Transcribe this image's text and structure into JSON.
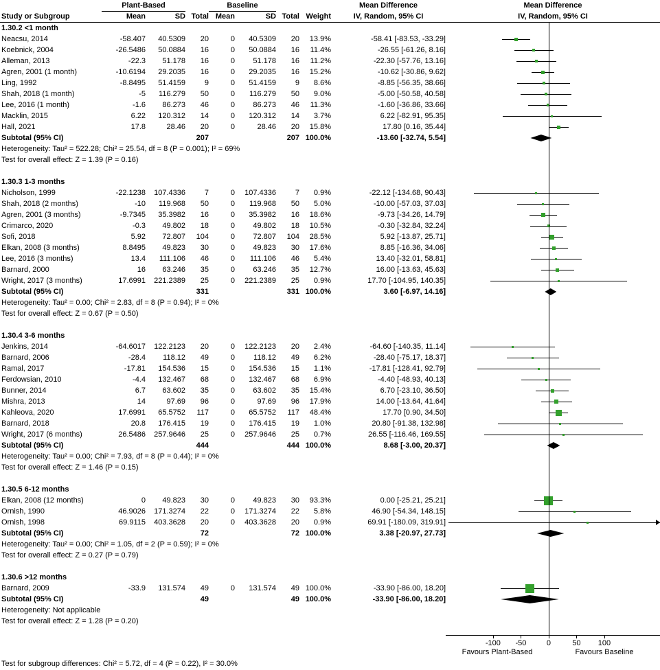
{
  "header": {
    "group_plant": "Plant-Based",
    "group_baseline": "Baseline",
    "md_title": "Mean Difference",
    "md_sub": "IV, Random, 95% CI",
    "cols": {
      "study": "Study or Subgroup",
      "mean": "Mean",
      "sd": "SD",
      "total": "Total",
      "weight": "Weight"
    }
  },
  "chart_data": {
    "type": "forest",
    "effect_measure": "Mean Difference",
    "method": "IV, Random, 95% CI",
    "axis": {
      "min": -185,
      "max": 200,
      "ticks": [
        -100,
        -50,
        0,
        50,
        100
      ]
    },
    "favours_left": "Favours Plant-Based",
    "favours_right": "Favours Baseline",
    "marker_color": "#33a02c",
    "footer": "Test for subgroup differences: Chi² = 5.72, df = 4 (P = 0.22), I² = 30.0%",
    "subgroups": [
      {
        "label": "1.30.2 <1 month",
        "studies": [
          {
            "study": "Neacsu, 2014",
            "mean1": "-58.407",
            "sd1": "40.5309",
            "total1": "20",
            "mean2": "0",
            "sd2": "40.5309",
            "total2": "20",
            "weight": "13.9%",
            "md": -58.41,
            "lo": -83.53,
            "hi": -33.29,
            "md_text": "-58.41 [-83.53, -33.29]"
          },
          {
            "study": "Koebnick, 2004",
            "mean1": "-26.5486",
            "sd1": "50.0884",
            "total1": "16",
            "mean2": "0",
            "sd2": "50.0884",
            "total2": "16",
            "weight": "11.4%",
            "md": -26.55,
            "lo": -61.26,
            "hi": 8.16,
            "md_text": "-26.55 [-61.26, 8.16]"
          },
          {
            "study": "Alleman, 2013",
            "mean1": "-22.3",
            "sd1": "51.178",
            "total1": "16",
            "mean2": "0",
            "sd2": "51.178",
            "total2": "16",
            "weight": "11.2%",
            "md": -22.3,
            "lo": -57.76,
            "hi": 13.16,
            "md_text": "-22.30 [-57.76, 13.16]"
          },
          {
            "study": "Agren, 2001 (1 month)",
            "mean1": "-10.6194",
            "sd1": "29.2035",
            "total1": "16",
            "mean2": "0",
            "sd2": "29.2035",
            "total2": "16",
            "weight": "15.2%",
            "md": -10.62,
            "lo": -30.86,
            "hi": 9.62,
            "md_text": "-10.62 [-30.86, 9.62]"
          },
          {
            "study": "Ling, 1992",
            "mean1": "-8.8495",
            "sd1": "51.4159",
            "total1": "9",
            "mean2": "0",
            "sd2": "51.4159",
            "total2": "9",
            "weight": "8.6%",
            "md": -8.85,
            "lo": -56.35,
            "hi": 38.66,
            "md_text": "-8.85 [-56.35, 38.66]"
          },
          {
            "study": "Shah, 2018 (1 month)",
            "mean1": "-5",
            "sd1": "116.279",
            "total1": "50",
            "mean2": "0",
            "sd2": "116.279",
            "total2": "50",
            "weight": "9.0%",
            "md": -5.0,
            "lo": -50.58,
            "hi": 40.58,
            "md_text": "-5.00 [-50.58, 40.58]"
          },
          {
            "study": "Lee, 2016 (1 month)",
            "mean1": "-1.6",
            "sd1": "86.273",
            "total1": "46",
            "mean2": "0",
            "sd2": "86.273",
            "total2": "46",
            "weight": "11.3%",
            "md": -1.6,
            "lo": -36.86,
            "hi": 33.66,
            "md_text": "-1.60 [-36.86, 33.66]"
          },
          {
            "study": "Macklin, 2015",
            "mean1": "6.22",
            "sd1": "120.312",
            "total1": "14",
            "mean2": "0",
            "sd2": "120.312",
            "total2": "14",
            "weight": "3.7%",
            "md": 6.22,
            "lo": -82.91,
            "hi": 95.35,
            "md_text": "6.22 [-82.91, 95.35]"
          },
          {
            "study": "Hall, 2021",
            "mean1": "17.8",
            "sd1": "28.46",
            "total1": "20",
            "mean2": "0",
            "sd2": "28.46",
            "total2": "20",
            "weight": "15.8%",
            "md": 17.8,
            "lo": 0.16,
            "hi": 35.44,
            "md_text": "17.80 [0.16, 35.44]"
          }
        ],
        "subtotal": {
          "label": "Subtotal (95% CI)",
          "total1": "207",
          "total2": "207",
          "weight": "100.0%",
          "md": -13.6,
          "lo": -32.74,
          "hi": 5.54,
          "md_text": "-13.60 [-32.74, 5.54]"
        },
        "heterogeneity": "Heterogeneity: Tau² = 522.28; Chi² = 25.54, df = 8 (P = 0.001); I² = 69%",
        "overall_effect": "Test for overall effect: Z = 1.39 (P = 0.16)"
      },
      {
        "label": "1.30.3 1-3 months",
        "studies": [
          {
            "study": "Nicholson, 1999",
            "mean1": "-22.1238",
            "sd1": "107.4336",
            "total1": "7",
            "mean2": "0",
            "sd2": "107.4336",
            "total2": "7",
            "weight": "0.9%",
            "md": -22.12,
            "lo": -134.68,
            "hi": 90.43,
            "md_text": "-22.12 [-134.68, 90.43]"
          },
          {
            "study": "Shah, 2018 (2 months)",
            "mean1": "-10",
            "sd1": "119.968",
            "total1": "50",
            "mean2": "0",
            "sd2": "119.968",
            "total2": "50",
            "weight": "5.0%",
            "md": -10.0,
            "lo": -57.03,
            "hi": 37.03,
            "md_text": "-10.00 [-57.03, 37.03]"
          },
          {
            "study": "Agren, 2001 (3 months)",
            "mean1": "-9.7345",
            "sd1": "35.3982",
            "total1": "16",
            "mean2": "0",
            "sd2": "35.3982",
            "total2": "16",
            "weight": "18.6%",
            "md": -9.73,
            "lo": -34.26,
            "hi": 14.79,
            "md_text": "-9.73 [-34.26, 14.79]"
          },
          {
            "study": "Crimarco, 2020",
            "mean1": "-0.3",
            "sd1": "49.802",
            "total1": "18",
            "mean2": "0",
            "sd2": "49.802",
            "total2": "18",
            "weight": "10.5%",
            "md": -0.3,
            "lo": -32.84,
            "hi": 32.24,
            "md_text": "-0.30 [-32.84, 32.24]"
          },
          {
            "study": "Sofi, 2018",
            "mean1": "5.92",
            "sd1": "72.807",
            "total1": "104",
            "mean2": "0",
            "sd2": "72.807",
            "total2": "104",
            "weight": "28.5%",
            "md": 5.92,
            "lo": -13.87,
            "hi": 25.71,
            "md_text": "5.92 [-13.87, 25.71]"
          },
          {
            "study": "Elkan, 2008 (3 months)",
            "mean1": "8.8495",
            "sd1": "49.823",
            "total1": "30",
            "mean2": "0",
            "sd2": "49.823",
            "total2": "30",
            "weight": "17.6%",
            "md": 8.85,
            "lo": -16.36,
            "hi": 34.06,
            "md_text": "8.85 [-16.36, 34.06]"
          },
          {
            "study": "Lee, 2016 (3 months)",
            "mean1": "13.4",
            "sd1": "111.106",
            "total1": "46",
            "mean2": "0",
            "sd2": "111.106",
            "total2": "46",
            "weight": "5.4%",
            "md": 13.4,
            "lo": -32.01,
            "hi": 58.81,
            "md_text": "13.40 [-32.01, 58.81]"
          },
          {
            "study": "Barnard, 2000",
            "mean1": "16",
            "sd1": "63.246",
            "total1": "35",
            "mean2": "0",
            "sd2": "63.246",
            "total2": "35",
            "weight": "12.7%",
            "md": 16.0,
            "lo": -13.63,
            "hi": 45.63,
            "md_text": "16.00 [-13.63, 45.63]"
          },
          {
            "study": "Wright, 2017 (3 months)",
            "mean1": "17.6991",
            "sd1": "221.2389",
            "total1": "25",
            "mean2": "0",
            "sd2": "221.2389",
            "total2": "25",
            "weight": "0.9%",
            "md": 17.7,
            "lo": -104.95,
            "hi": 140.35,
            "md_text": "17.70 [-104.95, 140.35]"
          }
        ],
        "subtotal": {
          "label": "Subtotal (95% CI)",
          "total1": "331",
          "total2": "331",
          "weight": "100.0%",
          "md": 3.6,
          "lo": -6.97,
          "hi": 14.16,
          "md_text": "3.60 [-6.97, 14.16]"
        },
        "heterogeneity": "Heterogeneity: Tau² = 0.00; Chi² = 2.83, df = 8 (P = 0.94); I² = 0%",
        "overall_effect": "Test for overall effect: Z = 0.67 (P = 0.50)"
      },
      {
        "label": "1.30.4 3-6 months",
        "studies": [
          {
            "study": "Jenkins, 2014",
            "mean1": "-64.6017",
            "sd1": "122.2123",
            "total1": "20",
            "mean2": "0",
            "sd2": "122.2123",
            "total2": "20",
            "weight": "2.4%",
            "md": -64.6,
            "lo": -140.35,
            "hi": 11.14,
            "md_text": "-64.60 [-140.35, 11.14]"
          },
          {
            "study": "Barnard, 2006",
            "mean1": "-28.4",
            "sd1": "118.12",
            "total1": "49",
            "mean2": "0",
            "sd2": "118.12",
            "total2": "49",
            "weight": "6.2%",
            "md": -28.4,
            "lo": -75.17,
            "hi": 18.37,
            "md_text": "-28.40 [-75.17, 18.37]"
          },
          {
            "study": "Ramal, 2017",
            "mean1": "-17.81",
            "sd1": "154.536",
            "total1": "15",
            "mean2": "0",
            "sd2": "154.536",
            "total2": "15",
            "weight": "1.1%",
            "md": -17.81,
            "lo": -128.41,
            "hi": 92.79,
            "md_text": "-17.81 [-128.41, 92.79]"
          },
          {
            "study": "Ferdowsian, 2010",
            "mean1": "-4.4",
            "sd1": "132.467",
            "total1": "68",
            "mean2": "0",
            "sd2": "132.467",
            "total2": "68",
            "weight": "6.9%",
            "md": -4.4,
            "lo": -48.93,
            "hi": 40.13,
            "md_text": "-4.40 [-48.93, 40.13]"
          },
          {
            "study": "Bunner, 2014",
            "mean1": "6.7",
            "sd1": "63.602",
            "total1": "35",
            "mean2": "0",
            "sd2": "63.602",
            "total2": "35",
            "weight": "15.4%",
            "md": 6.7,
            "lo": -23.1,
            "hi": 36.5,
            "md_text": "6.70 [-23.10, 36.50]"
          },
          {
            "study": "Mishra, 2013",
            "mean1": "14",
            "sd1": "97.69",
            "total1": "96",
            "mean2": "0",
            "sd2": "97.69",
            "total2": "96",
            "weight": "17.9%",
            "md": 14.0,
            "lo": -13.64,
            "hi": 41.64,
            "md_text": "14.00 [-13.64, 41.64]"
          },
          {
            "study": "Kahleova, 2020",
            "mean1": "17.6991",
            "sd1": "65.5752",
            "total1": "117",
            "mean2": "0",
            "sd2": "65.5752",
            "total2": "117",
            "weight": "48.4%",
            "md": 17.7,
            "lo": 0.9,
            "hi": 34.5,
            "md_text": "17.70 [0.90, 34.50]"
          },
          {
            "study": "Barnard, 2018",
            "mean1": "20.8",
            "sd1": "176.415",
            "total1": "19",
            "mean2": "0",
            "sd2": "176.415",
            "total2": "19",
            "weight": "1.0%",
            "md": 20.8,
            "lo": -91.38,
            "hi": 132.98,
            "md_text": "20.80 [-91.38, 132.98]"
          },
          {
            "study": "Wright, 2017 (6 months)",
            "mean1": "26.5486",
            "sd1": "257.9646",
            "total1": "25",
            "mean2": "0",
            "sd2": "257.9646",
            "total2": "25",
            "weight": "0.7%",
            "md": 26.55,
            "lo": -116.46,
            "hi": 169.55,
            "md_text": "26.55 [-116.46, 169.55]"
          }
        ],
        "subtotal": {
          "label": "Subtotal (95% CI)",
          "total1": "444",
          "total2": "444",
          "weight": "100.0%",
          "md": 8.68,
          "lo": -3.0,
          "hi": 20.37,
          "md_text": "8.68 [-3.00, 20.37]"
        },
        "heterogeneity": "Heterogeneity: Tau² = 0.00; Chi² = 7.93, df = 8 (P = 0.44); I² = 0%",
        "overall_effect": "Test for overall effect: Z = 1.46 (P = 0.15)"
      },
      {
        "label": "1.30.5 6-12 months",
        "studies": [
          {
            "study": "Elkan, 2008 (12 months)",
            "mean1": "0",
            "sd1": "49.823",
            "total1": "30",
            "mean2": "0",
            "sd2": "49.823",
            "total2": "30",
            "weight": "93.3%",
            "md": 0.0,
            "lo": -25.21,
            "hi": 25.21,
            "md_text": "0.00 [-25.21, 25.21]"
          },
          {
            "study": "Ornish, 1990",
            "mean1": "46.9026",
            "sd1": "171.3274",
            "total1": "22",
            "mean2": "0",
            "sd2": "171.3274",
            "total2": "22",
            "weight": "5.8%",
            "md": 46.9,
            "lo": -54.34,
            "hi": 148.15,
            "md_text": "46.90 [-54.34, 148.15]"
          },
          {
            "study": "Ornish, 1998",
            "mean1": "69.9115",
            "sd1": "403.3628",
            "total1": "20",
            "mean2": "0",
            "sd2": "403.3628",
            "total2": "20",
            "weight": "0.9%",
            "md": 69.91,
            "lo": -180.09,
            "hi": 319.91,
            "md_text": "69.91 [-180.09, 319.91]"
          }
        ],
        "subtotal": {
          "label": "Subtotal (95% CI)",
          "total1": "72",
          "total2": "72",
          "weight": "100.0%",
          "md": 3.38,
          "lo": -20.97,
          "hi": 27.73,
          "md_text": "3.38 [-20.97, 27.73]"
        },
        "heterogeneity": "Heterogeneity: Tau² = 0.00; Chi² = 1.05, df = 2 (P = 0.59); I² = 0%",
        "overall_effect": "Test for overall effect: Z = 0.27 (P = 0.79)"
      },
      {
        "label": "1.30.6 >12 months",
        "studies": [
          {
            "study": "Barnard, 2009",
            "mean1": "-33.9",
            "sd1": "131.574",
            "total1": "49",
            "mean2": "0",
            "sd2": "131.574",
            "total2": "49",
            "weight": "100.0%",
            "md": -33.9,
            "lo": -86.0,
            "hi": 18.2,
            "md_text": "-33.90 [-86.00, 18.20]"
          }
        ],
        "subtotal": {
          "label": "Subtotal (95% CI)",
          "total1": "49",
          "total2": "49",
          "weight": "100.0%",
          "md": -33.9,
          "lo": -86.0,
          "hi": 18.2,
          "md_text": "-33.90 [-86.00, 18.20]"
        },
        "heterogeneity": "Heterogeneity: Not applicable",
        "overall_effect": "Test for overall effect: Z = 1.28 (P = 0.20)"
      }
    ]
  }
}
